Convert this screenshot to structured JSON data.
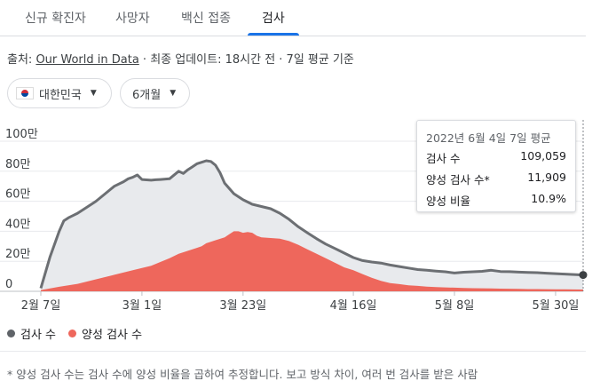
{
  "tabs": [
    {
      "label": "신규 확진자"
    },
    {
      "label": "사망자"
    },
    {
      "label": "백신 접종"
    },
    {
      "label": "검사"
    }
  ],
  "source": {
    "prefix": "출처: ",
    "link": "Our World in Data",
    "suffix": " · 최종 업데이트: 18시간 전 · 7일 평균 기준"
  },
  "filters": {
    "country": "대한민국",
    "range": "6개월"
  },
  "tooltip": {
    "title": "2022년 6월 4일 7일 평균",
    "rows": [
      {
        "label": "검사 수",
        "value": "109,059"
      },
      {
        "label": "양성 검사 수*",
        "value": "11,909"
      },
      {
        "label": "양성 비율",
        "value": "10.9%"
      }
    ]
  },
  "legend": {
    "tests": "검사 수",
    "positive": "양성 검사 수"
  },
  "footnote": "* 양성 검사 수는 검사 수에 양성 비율을 곱하여 추정합니다. 보고 방식 차이, 여러 번 검사를 받은 사람",
  "colors": {
    "tests_fill": "#e8eaed",
    "tests_line": "#6c6f73",
    "positive_fill": "#ee675c",
    "accent": "#1a73e8"
  },
  "chart_data": {
    "type": "area",
    "title": "검사",
    "ylim": [
      0,
      1000000
    ],
    "xlim": [
      0,
      118
    ],
    "y_ticks": [
      {
        "value": 0,
        "label": "0"
      },
      {
        "value": 200000,
        "label": "20만"
      },
      {
        "value": 400000,
        "label": "40만"
      },
      {
        "value": 600000,
        "label": "60만"
      },
      {
        "value": 800000,
        "label": "80만"
      },
      {
        "value": 1000000,
        "label": "100만"
      }
    ],
    "x_ticks": [
      {
        "day": 0,
        "label": "2월 7일"
      },
      {
        "day": 22,
        "label": "3월 1일"
      },
      {
        "day": 44,
        "label": "3월 23일"
      },
      {
        "day": 68,
        "label": "4월 16일"
      },
      {
        "day": 90,
        "label": "5월 8일"
      },
      {
        "day": 112,
        "label": "5월 30일"
      }
    ],
    "series": [
      {
        "name": "검사 수",
        "x": [
          0,
          2,
          4,
          5,
          6,
          7,
          8,
          10,
          12,
          14,
          16,
          18,
          19,
          20,
          21,
          22,
          24,
          25,
          26,
          28,
          30,
          31,
          32,
          33,
          34,
          35,
          36,
          37,
          38,
          39,
          40,
          42,
          44,
          46,
          48,
          50,
          52,
          54,
          56,
          58,
          60,
          62,
          64,
          66,
          68,
          70,
          72,
          74,
          76,
          78,
          80,
          82,
          84,
          86,
          88,
          90,
          92,
          94,
          96,
          98,
          100,
          102,
          104,
          106,
          108,
          110,
          112,
          114,
          116,
          118
        ],
        "values": [
          20000,
          230000,
          400000,
          470000,
          490000,
          505000,
          520000,
          560000,
          600000,
          650000,
          700000,
          730000,
          750000,
          760000,
          775000,
          745000,
          740000,
          743000,
          745000,
          750000,
          800000,
          785000,
          810000,
          830000,
          850000,
          860000,
          870000,
          865000,
          840000,
          790000,
          720000,
          650000,
          610000,
          580000,
          565000,
          550000,
          520000,
          480000,
          430000,
          390000,
          350000,
          315000,
          285000,
          255000,
          225000,
          205000,
          195000,
          188000,
          175000,
          165000,
          155000,
          145000,
          140000,
          135000,
          130000,
          122000,
          127000,
          130000,
          133000,
          140000,
          132000,
          131000,
          128000,
          126000,
          124000,
          121000,
          118000,
          115000,
          112000,
          109059
        ]
      },
      {
        "name": "양성 검사 수",
        "x": [
          0,
          4,
          8,
          12,
          16,
          20,
          24,
          28,
          30,
          32,
          34,
          35,
          36,
          38,
          40,
          41,
          42,
          43,
          44,
          45,
          46,
          47,
          48,
          50,
          52,
          54,
          56,
          58,
          60,
          62,
          64,
          66,
          68,
          70,
          72,
          74,
          76,
          78,
          80,
          82,
          84,
          86,
          88,
          90,
          92,
          94,
          96,
          98,
          100,
          102,
          104,
          106,
          108,
          110,
          112,
          114,
          116,
          118
        ],
        "values": [
          8000,
          30000,
          50000,
          80000,
          110000,
          140000,
          170000,
          220000,
          250000,
          270000,
          290000,
          300000,
          320000,
          340000,
          360000,
          380000,
          400000,
          400000,
          390000,
          395000,
          390000,
          370000,
          360000,
          355000,
          350000,
          335000,
          310000,
          280000,
          250000,
          220000,
          190000,
          160000,
          140000,
          115000,
          90000,
          70000,
          55000,
          48000,
          40000,
          36000,
          31000,
          28000,
          26000,
          24000,
          22000,
          21000,
          20000,
          19000,
          18000,
          17000,
          16000,
          15000,
          14500,
          14000,
          13500,
          13000,
          12500,
          11909
        ]
      }
    ]
  }
}
